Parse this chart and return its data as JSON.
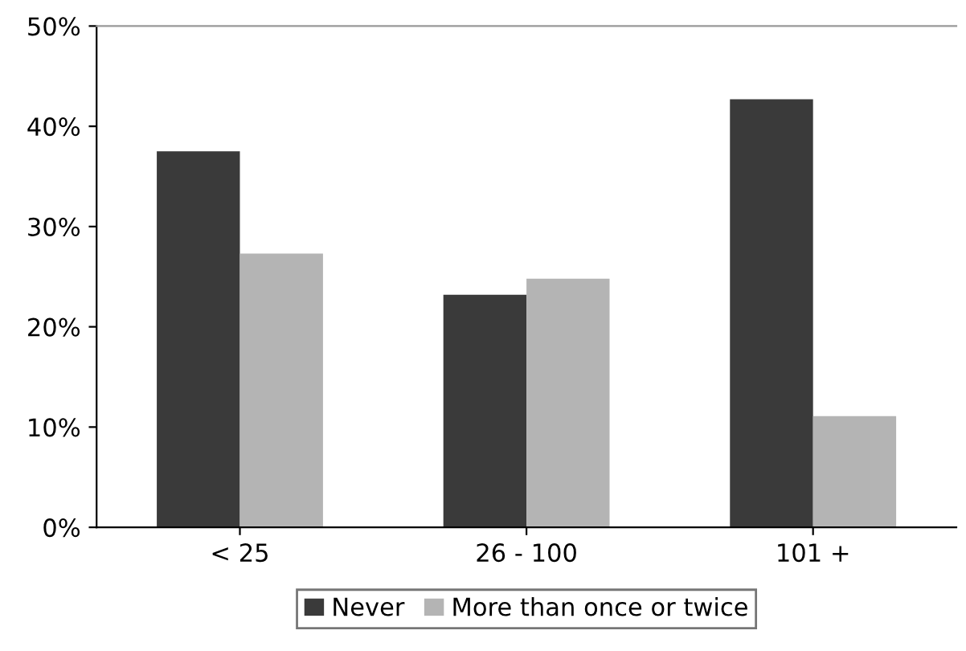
{
  "chart_data": {
    "type": "bar",
    "categories": [
      "< 25",
      "26 - 100",
      "101 +"
    ],
    "series": [
      {
        "name": "Never",
        "color": "#3a3a3a",
        "values": [
          37.5,
          23.2,
          42.7
        ]
      },
      {
        "name": "More than once or twice",
        "color": "#b4b4b4",
        "values": [
          27.3,
          24.8,
          11.1
        ]
      }
    ],
    "ylim": [
      0,
      50
    ],
    "yticks": [
      {
        "value": 0,
        "label": "0%"
      },
      {
        "value": 10,
        "label": "10%"
      },
      {
        "value": 20,
        "label": "20%"
      },
      {
        "value": 30,
        "label": "30%"
      },
      {
        "value": 40,
        "label": "40%"
      },
      {
        "value": 50,
        "label": "50%"
      }
    ],
    "grid": false,
    "legend": "bottom"
  }
}
